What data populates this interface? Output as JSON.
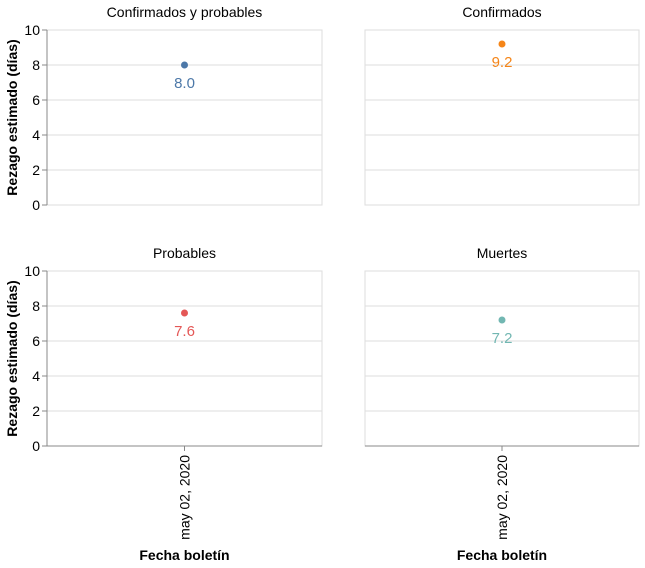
{
  "chart_data": [
    {
      "type": "scatter",
      "title": "Confirmados y probables",
      "ylabel": "Rezago estimado (días)",
      "xlabel": "",
      "ylim": [
        0,
        10
      ],
      "yticks": [
        0,
        2,
        4,
        6,
        8,
        10
      ],
      "x_ticks": [],
      "grid": true,
      "color": "#4c78a8",
      "points": [
        {
          "x": "may 02, 2020",
          "y": 8.0,
          "label": "8.0"
        }
      ]
    },
    {
      "type": "scatter",
      "title": "Confirmados",
      "ylabel": "",
      "xlabel": "",
      "ylim": [
        0,
        10
      ],
      "yticks": [],
      "x_ticks": [],
      "grid": true,
      "color": "#f58518",
      "points": [
        {
          "x": "may 02, 2020",
          "y": 9.2,
          "label": "9.2"
        }
      ]
    },
    {
      "type": "scatter",
      "title": "Probables",
      "ylabel": "Rezago estimado (días)",
      "xlabel": "Fecha boletín",
      "ylim": [
        0,
        10
      ],
      "yticks": [
        0,
        2,
        4,
        6,
        8,
        10
      ],
      "x_ticks": [
        "may 02, 2020"
      ],
      "grid": true,
      "color": "#e45756",
      "points": [
        {
          "x": "may 02, 2020",
          "y": 7.6,
          "label": "7.6"
        }
      ]
    },
    {
      "type": "scatter",
      "title": "Muertes",
      "ylabel": "",
      "xlabel": "Fecha boletín",
      "ylim": [
        0,
        10
      ],
      "yticks": [],
      "x_ticks": [
        "may 02, 2020"
      ],
      "grid": true,
      "color": "#72b7b2",
      "points": [
        {
          "x": "may 02, 2020",
          "y": 7.2,
          "label": "7.2"
        }
      ]
    }
  ]
}
